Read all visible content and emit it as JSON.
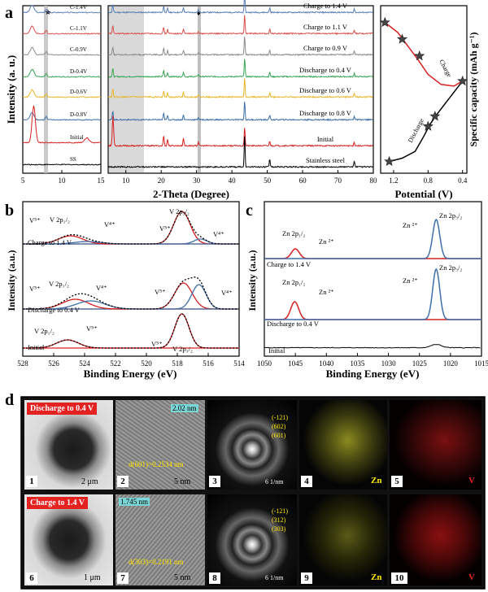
{
  "panel_letters": [
    "a",
    "b",
    "c",
    "d"
  ],
  "chart_data": [
    {
      "id": "a-left",
      "type": "line",
      "xlabel": "2-Theta (Degree)",
      "ylabel": "Intensity (a. u.)",
      "xlim": [
        5,
        15
      ],
      "xticks": [
        5,
        10,
        15
      ],
      "star_marker": "★",
      "series": [
        {
          "name": "C-1.4V",
          "color": "#5a7fb5"
        },
        {
          "name": "C-1.1V",
          "color": "#d9534f"
        },
        {
          "name": "C-0.9V",
          "color": "#8c8c8c"
        },
        {
          "name": "D-0.4V",
          "color": "#3aa655"
        },
        {
          "name": "D-0.6V",
          "color": "#e8b62a"
        },
        {
          "name": "D-0.8V",
          "color": "#3f6fa8"
        },
        {
          "name": "Initial",
          "color": "#d62020"
        },
        {
          "name": "SS",
          "color": "#000000"
        }
      ]
    },
    {
      "id": "a-middle",
      "type": "line",
      "xlim": [
        5,
        80
      ],
      "xticks": [
        10,
        20,
        30,
        40,
        50,
        60,
        70,
        80
      ],
      "diamond_marker": "♦",
      "series": [
        {
          "name": "Charge to 1.4 V",
          "color": "#5a7fb5"
        },
        {
          "name": "Charge to 1.1 V",
          "color": "#d9534f"
        },
        {
          "name": "Charge to 0.9 V",
          "color": "#8c8c8c"
        },
        {
          "name": "Discharge to 0.4 V",
          "color": "#3aa655"
        },
        {
          "name": "Discharge to 0.6 V",
          "color": "#e8b62a"
        },
        {
          "name": "Discharge to 0.8 V",
          "color": "#3f6fa8"
        },
        {
          "name": "Initial",
          "color": "#d62020"
        },
        {
          "name": "Stainless steel",
          "color": "#000000"
        }
      ]
    },
    {
      "id": "a-right",
      "type": "line",
      "xlabel": "Potential (V)",
      "ylabel": "Specific capacity (mAh g⁻¹)",
      "xlim": [
        1.35,
        0.35
      ],
      "xticks": [
        1.2,
        0.8,
        0.4
      ],
      "xtick_labels": [
        "1.2",
        "0.8",
        "0.4"
      ],
      "charge_label": "Charge",
      "discharge_label": "Discharge",
      "charge_points": [
        [
          1.3,
          0.9
        ],
        [
          1.1,
          0.8
        ],
        [
          0.9,
          0.7
        ]
      ],
      "discharge_points": [
        [
          1.25,
          0.07
        ],
        [
          0.8,
          0.28
        ],
        [
          0.72,
          0.34
        ],
        [
          0.4,
          0.55
        ]
      ],
      "charge_curve": [
        [
          1.3,
          0.9
        ],
        [
          1.15,
          0.84
        ],
        [
          1.05,
          0.77
        ],
        [
          0.92,
          0.68
        ],
        [
          0.8,
          0.59
        ],
        [
          0.65,
          0.53
        ],
        [
          0.5,
          0.52
        ],
        [
          0.4,
          0.55
        ]
      ],
      "discharge_curve": [
        [
          1.25,
          0.07
        ],
        [
          1.1,
          0.09
        ],
        [
          0.95,
          0.13
        ],
        [
          0.85,
          0.22
        ],
        [
          0.78,
          0.29
        ],
        [
          0.7,
          0.35
        ],
        [
          0.55,
          0.45
        ],
        [
          0.4,
          0.55
        ]
      ]
    },
    {
      "id": "b",
      "type": "line",
      "xlabel": "Binding Energy (eV)",
      "ylabel": "Intensity (a.u.)",
      "xlim": [
        528,
        514
      ],
      "xticks": [
        528,
        526,
        524,
        522,
        520,
        518,
        516,
        514
      ],
      "series": [
        {
          "name": "Charge to 1.4 V"
        },
        {
          "name": "Discharge to 0.4 V"
        },
        {
          "name": "Initial"
        }
      ],
      "annotations": [
        "V⁵⁺",
        "V 2p₁/₂",
        "V⁴⁺",
        "V 2p₃/₂"
      ]
    },
    {
      "id": "c",
      "type": "line",
      "xlabel": "Binding Energy (eV)",
      "ylabel": "Intensity (a.u.)",
      "xlim": [
        1050,
        1015
      ],
      "xticks": [
        1050,
        1045,
        1040,
        1035,
        1030,
        1025,
        1020,
        1015
      ],
      "series": [
        {
          "name": "Charge to 1.4 V"
        },
        {
          "name": "Discharge to 0.4 V"
        },
        {
          "name": "Initial"
        }
      ],
      "annotations": [
        "Zn 2p₁/₂",
        "Zn ²⁺",
        "Zn 2p₃/₂"
      ]
    }
  ],
  "panel_d": {
    "row1_tag": "Discharge to 0.4 V",
    "row2_tag": "Charge to 1.4 V",
    "labels": [
      "1",
      "2",
      "3",
      "4",
      "5",
      "6",
      "7",
      "8",
      "9",
      "10"
    ],
    "scale_bars": [
      "2 μm",
      "5 nm",
      "6 1/nm",
      "1 μm",
      "5 nm",
      "6 1/nm"
    ],
    "d_spacing_1": "d(601)=0.2534 nm",
    "d_spacing_2": "d(303)=0.2191 nm",
    "fft_1": "2.02 nm",
    "fft_2": "1.745 nm",
    "saed_1": [
      "(-121)",
      "(602)",
      "(601)"
    ],
    "saed_2": [
      "(-121)",
      "(312)",
      "(303)"
    ],
    "element_zn": "Zn",
    "element_v": "V"
  }
}
